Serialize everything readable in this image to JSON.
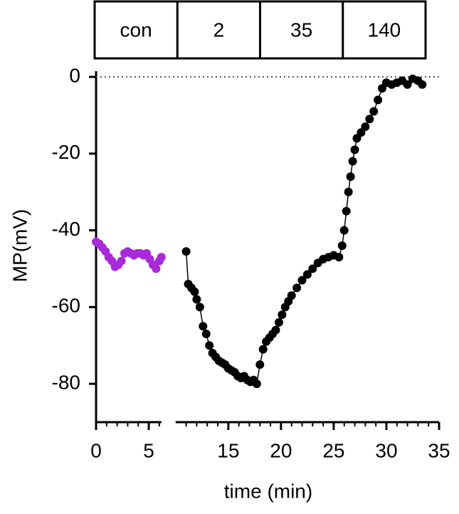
{
  "chart_data": {
    "type": "scatter",
    "header_cells": [
      "con",
      "2",
      "35",
      "140"
    ],
    "xlabel": "time (min)",
    "ylabel": "MP(mV)",
    "xlim": [
      0,
      35
    ],
    "xbreak": [
      6.2,
      10
    ],
    "xticks": [
      0,
      5,
      15,
      20,
      25,
      30,
      35
    ],
    "xminorticks": [
      1,
      2,
      3,
      4,
      6,
      11,
      12,
      13,
      14,
      16,
      17,
      18,
      19,
      21,
      22,
      23,
      24,
      26,
      27,
      28,
      29,
      31,
      32,
      33,
      34
    ],
    "ylim": [
      -90,
      0
    ],
    "yticks": [
      0,
      -20,
      -40,
      -60,
      -80
    ],
    "reference_line": 0,
    "series": [
      {
        "color": "#a82ad8",
        "x": [
          0,
          0.3,
          0.6,
          0.9,
          1.2,
          1.5,
          1.8,
          2.1,
          2.4,
          2.7,
          3.0,
          3.3,
          3.6,
          3.9,
          4.2,
          4.5,
          4.8,
          5.1,
          5.4,
          5.7,
          6.0,
          6.2
        ],
        "values": [
          -43,
          -43.5,
          -44.5,
          -45.5,
          -47,
          -48,
          -49.5,
          -49,
          -48,
          -46,
          -45.5,
          -46,
          -46.5,
          -46,
          -46,
          -46.5,
          -46,
          -47.5,
          -49,
          -50,
          -48,
          -47
        ]
      },
      {
        "color": "#000000",
        "x": [
          11,
          11.2,
          11.5,
          11.8,
          12.0,
          12.3,
          12.6,
          12.9,
          13.2,
          13.5,
          13.8,
          14.1,
          14.4,
          14.7,
          15,
          15.3,
          15.6,
          15.9,
          16.2,
          16.5,
          16.8,
          17.1,
          17.4,
          17.7,
          18.0,
          18.3,
          18.6,
          18.9,
          19.2,
          19.5,
          19.8,
          20.1,
          20.4,
          20.7,
          21,
          21.5,
          22,
          22.5,
          23,
          23.5,
          24,
          24.5,
          25,
          25.5,
          25.8,
          26.0,
          26.2,
          26.4,
          26.6,
          26.8,
          27.0,
          27.2,
          27.6,
          28,
          28.4,
          28.8,
          29.2,
          29.6,
          30,
          30.5,
          31,
          31.5,
          32,
          32.5,
          33,
          33.4
        ],
        "values": [
          -45.5,
          -54,
          -55,
          -56,
          -58,
          -60,
          -65,
          -67,
          -70,
          -72,
          -73,
          -74,
          -74.5,
          -75,
          -76,
          -76.5,
          -77,
          -78,
          -78.5,
          -78,
          -79,
          -79.5,
          -79,
          -80,
          -75,
          -71,
          -69,
          -68,
          -67,
          -66,
          -64,
          -62,
          -60,
          -58.5,
          -57,
          -55,
          -53,
          -51.5,
          -50,
          -48.5,
          -47.5,
          -47,
          -46.5,
          -47,
          -44,
          -40,
          -35,
          -30,
          -26,
          -22,
          -19,
          -16,
          -14.5,
          -13,
          -11,
          -9,
          -6,
          -3,
          -1.5,
          -2,
          -1.5,
          -1,
          -2,
          -0.5,
          -1,
          -2
        ]
      }
    ]
  }
}
